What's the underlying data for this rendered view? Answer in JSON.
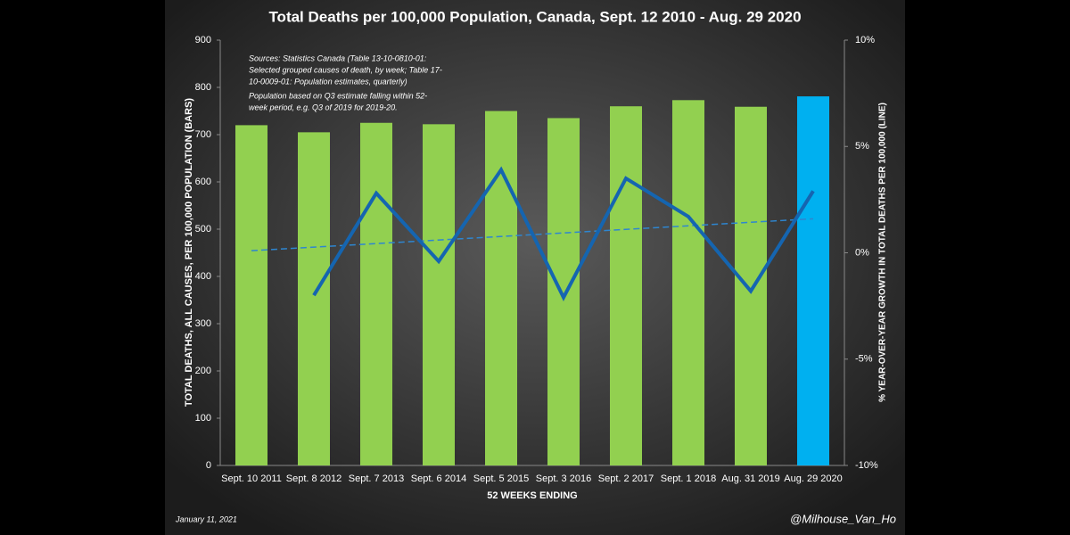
{
  "chart_data": {
    "type": "bar",
    "title": "Total Deaths per 100,000 Population, Canada, Sept. 12 2010 - Aug. 29 2020",
    "x_label": "52 WEEKS ENDING",
    "y_label": "TOTAL DEATHS, ALL CAUSES, PER 100,000 POPULATION (BARS)",
    "y2_label": "% YEAR-OVER-YEAR GROWTH IN TOTAL DEATHS PER 100,000 (LINE)",
    "categories": [
      "Sept. 10 2011",
      "Sept. 8 2012",
      "Sept. 7 2013",
      "Sept. 6 2014",
      "Sept. 5 2015",
      "Sept. 3 2016",
      "Sept. 2 2017",
      "Sept. 1 2018",
      "Aug. 31 2019",
      "Aug. 29 2020"
    ],
    "values": [
      720,
      705,
      725,
      722,
      750,
      735,
      760,
      773,
      759,
      781
    ],
    "colors": [
      "#92d050",
      "#92d050",
      "#92d050",
      "#92d050",
      "#92d050",
      "#92d050",
      "#92d050",
      "#92d050",
      "#92d050",
      "#00b0f0"
    ],
    "line": {
      "type": "line",
      "axis": "y2",
      "color": "#1565b0",
      "values": [
        null,
        -2.0,
        2.8,
        -0.4,
        3.9,
        -2.1,
        3.5,
        1.7,
        -1.8,
        2.9
      ]
    },
    "trendline": {
      "color": "#2e86d0",
      "values": [
        0.1,
        1.6
      ]
    },
    "ylim": [
      0,
      900
    ],
    "yticks": [
      0,
      100,
      200,
      300,
      400,
      500,
      600,
      700,
      800,
      900
    ],
    "y2lim": [
      -10,
      10
    ],
    "y2ticks": [
      {
        "value": -10,
        "label": "-10%"
      },
      {
        "value": -5,
        "label": "-5%"
      },
      {
        "value": 0,
        "label": "0%"
      },
      {
        "value": 5,
        "label": "5%"
      },
      {
        "value": 10,
        "label": "10%"
      }
    ],
    "sources_note": [
      "Sources: Statistics Canada (Table 13-10-0810-01:",
      "Selected grouped causes of death, by week; Table 17-",
      "10-0009-01: Population estimates, quarterly)"
    ],
    "population_note": [
      "Population based on Q3 estimate falling within 52-",
      "week period, e.g. Q3 of 2019 for 2019-20."
    ],
    "date": "January 11, 2021",
    "credit": "@Milhouse_Van_Ho"
  }
}
